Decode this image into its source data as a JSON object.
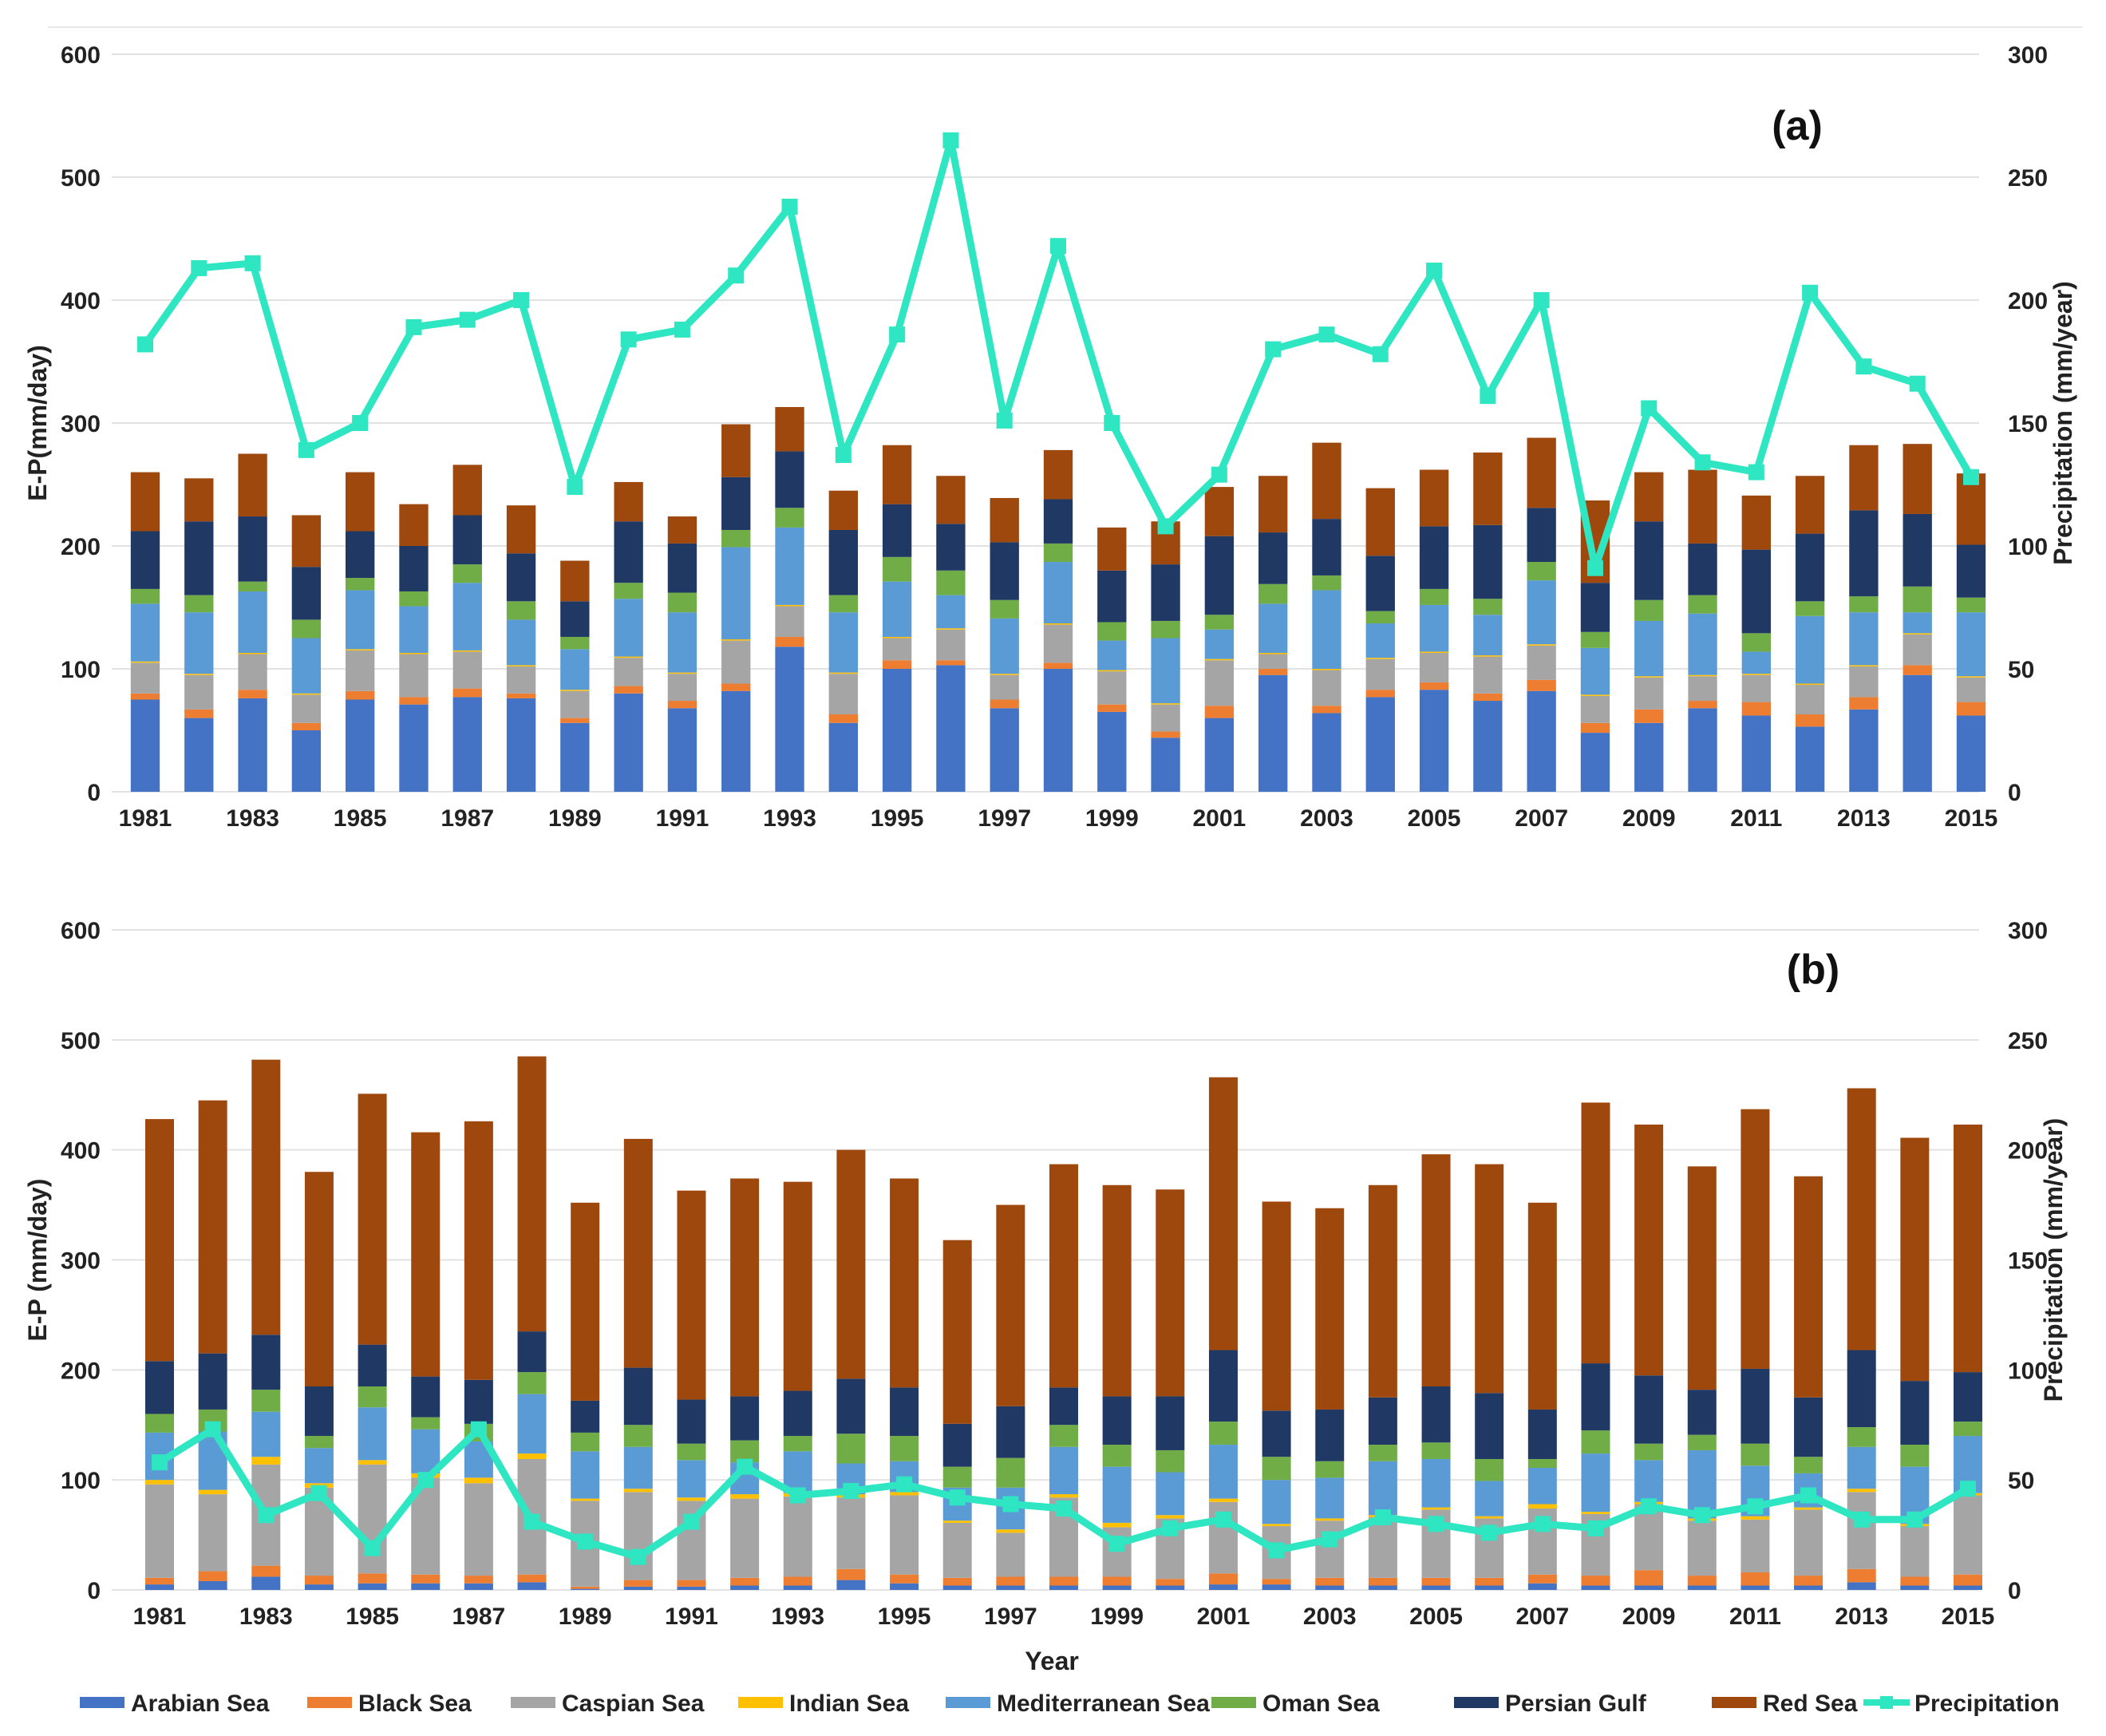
{
  "chart_data": [
    {
      "type": "bar",
      "panel_label": "(a)",
      "stacked": true,
      "years": [
        1981,
        1982,
        1983,
        1984,
        1985,
        1986,
        1987,
        1988,
        1989,
        1990,
        1991,
        1992,
        1993,
        1994,
        1995,
        1996,
        1997,
        1998,
        1999,
        2000,
        2001,
        2002,
        2003,
        2004,
        2005,
        2006,
        2007,
        2008,
        2009,
        2010,
        2011,
        2012,
        2013,
        2014,
        2015
      ],
      "tick_labels": [
        "1981",
        "1983",
        "1985",
        "1987",
        "1989",
        "1991",
        "1993",
        "1995",
        "1997",
        "1999",
        "2001",
        "2003",
        "2005",
        "2007",
        "2009",
        "2011",
        "2013",
        "2015"
      ],
      "ylabel": "E-P(mm/day)",
      "ylabel2": "Precipitation  (mm/year)",
      "ylim": [
        0,
        600
      ],
      "y2lim": [
        0,
        300
      ],
      "yticks": [
        "0",
        "100",
        "200",
        "300",
        "400",
        "500",
        "600"
      ],
      "y2ticks": [
        "0",
        "50",
        "100",
        "150",
        "200",
        "250",
        "300"
      ],
      "series": [
        {
          "name": "Arabian Sea",
          "color": "#4472C4",
          "values": [
            75,
            60,
            76,
            50,
            75,
            71,
            77,
            76,
            56,
            80,
            68,
            82,
            118,
            56,
            100,
            103,
            68,
            100,
            65,
            44,
            60,
            95,
            64,
            77,
            83,
            74,
            82,
            48,
            56,
            68,
            62,
            53,
            67,
            95,
            62
          ]
        },
        {
          "name": "Black Sea",
          "color": "#ED7D31",
          "values": [
            5,
            7,
            7,
            6,
            7,
            6,
            7,
            4,
            4,
            6,
            6,
            6,
            8,
            7,
            7,
            4,
            7,
            5,
            6,
            5,
            10,
            5,
            6,
            6,
            6,
            6,
            9,
            8,
            11,
            6,
            11,
            10,
            10,
            8,
            11
          ]
        },
        {
          "name": "Caspian Sea",
          "color": "#A5A5A5",
          "values": [
            25,
            28,
            29,
            23,
            33,
            35,
            30,
            22,
            22,
            23,
            22,
            35,
            25,
            33,
            18,
            25,
            20,
            31,
            27,
            22,
            37,
            12,
            29,
            25,
            24,
            30,
            28,
            22,
            26,
            20,
            22,
            24,
            25,
            25,
            20
          ]
        },
        {
          "name": "Indian Sea",
          "color": "#FFC000",
          "values": [
            1,
            1,
            1,
            1,
            1,
            1,
            1,
            1,
            1,
            1,
            1,
            1,
            1,
            1,
            1,
            1,
            1,
            1,
            1,
            1,
            1,
            1,
            1,
            1,
            1,
            1,
            1,
            1,
            1,
            1,
            1,
            1,
            1,
            1,
            1
          ]
        },
        {
          "name": "Mediterranean Sea",
          "color": "#5B9BD5",
          "values": [
            47,
            50,
            50,
            45,
            48,
            38,
            55,
            37,
            33,
            47,
            49,
            75,
            63,
            49,
            45,
            27,
            45,
            50,
            24,
            53,
            24,
            40,
            64,
            28,
            38,
            33,
            52,
            38,
            45,
            50,
            18,
            55,
            43,
            17,
            52
          ]
        },
        {
          "name": "Oman Sea",
          "color": "#70AD47",
          "values": [
            12,
            14,
            8,
            15,
            10,
            12,
            15,
            15,
            10,
            13,
            16,
            14,
            16,
            14,
            20,
            20,
            15,
            15,
            15,
            14,
            12,
            16,
            12,
            10,
            13,
            13,
            15,
            13,
            17,
            15,
            15,
            12,
            13,
            21,
            12
          ]
        },
        {
          "name": "Persian Gulf",
          "color": "#203864",
          "values": [
            47,
            60,
            53,
            43,
            38,
            37,
            40,
            39,
            29,
            50,
            40,
            43,
            46,
            53,
            43,
            38,
            47,
            36,
            42,
            46,
            64,
            42,
            46,
            45,
            51,
            60,
            44,
            40,
            64,
            42,
            68,
            55,
            70,
            59,
            43
          ]
        },
        {
          "name": "Red Sea",
          "color": "#9E480E",
          "values": [
            48,
            35,
            51,
            42,
            48,
            34,
            41,
            39,
            33,
            32,
            22,
            43,
            36,
            32,
            48,
            39,
            36,
            40,
            35,
            35,
            40,
            46,
            62,
            55,
            46,
            59,
            57,
            67,
            40,
            60,
            44,
            47,
            53,
            57,
            58
          ]
        }
      ],
      "line": {
        "name": "Precipitation",
        "color": "#2EE6C2",
        "values": [
          182,
          213,
          215,
          139,
          150,
          189,
          192,
          200,
          124,
          184,
          188,
          210,
          238,
          137,
          186,
          265,
          151,
          222,
          150,
          108,
          129,
          180,
          186,
          178,
          212,
          161,
          200,
          91,
          156,
          134,
          130,
          203,
          173,
          166,
          128
        ]
      }
    },
    {
      "type": "bar",
      "panel_label": "(b)",
      "stacked": true,
      "years": [
        1981,
        1982,
        1983,
        1984,
        1985,
        1986,
        1987,
        1988,
        1989,
        1990,
        1991,
        1992,
        1993,
        1994,
        1995,
        1996,
        1997,
        1998,
        1999,
        2000,
        2001,
        2002,
        2003,
        2004,
        2005,
        2006,
        2007,
        2008,
        2009,
        2010,
        2011,
        2012,
        2013,
        2014,
        2015
      ],
      "tick_labels": [
        "1981",
        "1983",
        "1985",
        "1987",
        "1989",
        "1991",
        "1993",
        "1995",
        "1997",
        "1999",
        "2001",
        "2003",
        "2005",
        "2007",
        "2009",
        "2011",
        "2013",
        "2015"
      ],
      "xlabel": "Year",
      "ylabel": "E-P (mm/day)",
      "ylabel2": "Precipitation  (mm/year)",
      "ylim": [
        0,
        600
      ],
      "y2lim": [
        0,
        300
      ],
      "yticks": [
        "0",
        "100",
        "200",
        "300",
        "400",
        "500",
        "600"
      ],
      "y2ticks": [
        "0",
        "50",
        "100",
        "150",
        "200",
        "250",
        "300"
      ],
      "series": [
        {
          "name": "Arabian Sea",
          "color": "#4472C4",
          "values": [
            5,
            8,
            12,
            5,
            6,
            6,
            6,
            7,
            1,
            3,
            3,
            4,
            4,
            9,
            6,
            4,
            4,
            4,
            4,
            4,
            5,
            5,
            4,
            4,
            4,
            4,
            6,
            4,
            4,
            4,
            4,
            4,
            7,
            4,
            4
          ]
        },
        {
          "name": "Black Sea",
          "color": "#ED7D31",
          "values": [
            6,
            9,
            10,
            8,
            9,
            8,
            7,
            7,
            2,
            6,
            6,
            7,
            8,
            10,
            8,
            7,
            8,
            8,
            8,
            6,
            10,
            5,
            7,
            7,
            7,
            7,
            8,
            9,
            14,
            9,
            12,
            9,
            12,
            8,
            10
          ]
        },
        {
          "name": "Caspian Sea",
          "color": "#A5A5A5",
          "values": [
            85,
            70,
            92,
            80,
            99,
            88,
            84,
            105,
            78,
            80,
            72,
            72,
            73,
            65,
            72,
            50,
            40,
            72,
            45,
            55,
            65,
            48,
            52,
            55,
            62,
            54,
            60,
            56,
            60,
            50,
            48,
            60,
            70,
            46,
            72
          ]
        },
        {
          "name": "Indian Sea",
          "color": "#FFC000",
          "values": [
            4,
            4,
            7,
            4,
            4,
            4,
            5,
            5,
            2,
            3,
            3,
            4,
            3,
            3,
            3,
            2,
            3,
            3,
            4,
            3,
            3,
            2,
            2,
            2,
            2,
            2,
            4,
            2,
            2,
            2,
            3,
            2,
            3,
            2,
            2
          ]
        },
        {
          "name": "Mediterranean Sea",
          "color": "#5B9BD5",
          "values": [
            43,
            53,
            41,
            32,
            48,
            40,
            33,
            54,
            43,
            38,
            34,
            29,
            38,
            28,
            28,
            30,
            38,
            43,
            51,
            39,
            49,
            40,
            37,
            49,
            44,
            32,
            33,
            53,
            38,
            62,
            46,
            31,
            38,
            52,
            52
          ]
        },
        {
          "name": "Oman Sea",
          "color": "#70AD47",
          "values": [
            17,
            20,
            20,
            11,
            19,
            11,
            16,
            20,
            17,
            20,
            15,
            20,
            14,
            27,
            23,
            19,
            27,
            20,
            20,
            20,
            21,
            21,
            15,
            15,
            15,
            20,
            8,
            21,
            15,
            14,
            20,
            15,
            18,
            20,
            13
          ]
        },
        {
          "name": "Persian Gulf",
          "color": "#203864",
          "values": [
            48,
            51,
            50,
            45,
            38,
            37,
            40,
            37,
            29,
            52,
            40,
            40,
            41,
            50,
            44,
            39,
            47,
            34,
            44,
            49,
            65,
            42,
            47,
            43,
            51,
            60,
            45,
            61,
            62,
            41,
            68,
            54,
            70,
            58,
            45
          ]
        },
        {
          "name": "Red Sea",
          "color": "#9E480E",
          "values": [
            220,
            230,
            250,
            195,
            228,
            222,
            235,
            250,
            180,
            208,
            190,
            198,
            190,
            208,
            190,
            167,
            183,
            203,
            192,
            188,
            248,
            190,
            183,
            193,
            211,
            208,
            188,
            237,
            228,
            203,
            236,
            201,
            238,
            221,
            225
          ]
        }
      ],
      "line": {
        "name": "Precipitation",
        "color": "#2EE6C2",
        "values": [
          58,
          73,
          34,
          44,
          19,
          50,
          73,
          31,
          22,
          15,
          31,
          56,
          43,
          45,
          48,
          42,
          39,
          37,
          21,
          28,
          32,
          18,
          23,
          33,
          30,
          26,
          30,
          28,
          38,
          34,
          38,
          43,
          32,
          32,
          46
        ]
      }
    }
  ],
  "legend": [
    {
      "label": "Arabian Sea",
      "color": "#4472C4",
      "kind": "bar"
    },
    {
      "label": "Black Sea",
      "color": "#ED7D31",
      "kind": "bar"
    },
    {
      "label": "Caspian Sea",
      "color": "#A5A5A5",
      "kind": "bar"
    },
    {
      "label": "Indian Sea",
      "color": "#FFC000",
      "kind": "bar"
    },
    {
      "label": "Mediterranean Sea",
      "color": "#5B9BD5",
      "kind": "bar"
    },
    {
      "label": "Oman Sea",
      "color": "#70AD47",
      "kind": "bar"
    },
    {
      "label": "Persian Gulf",
      "color": "#203864",
      "kind": "bar"
    },
    {
      "label": "Red Sea",
      "color": "#9E480E",
      "kind": "bar"
    },
    {
      "label": "Precipitation",
      "color": "#2EE6C2",
      "kind": "line"
    }
  ]
}
